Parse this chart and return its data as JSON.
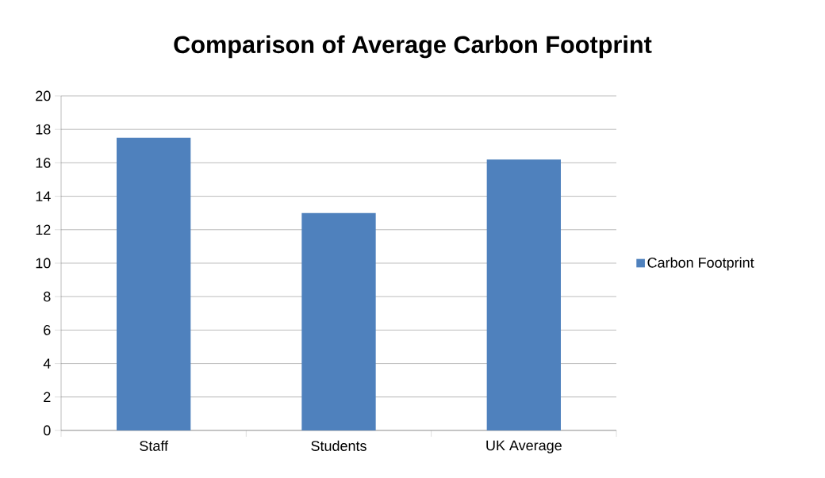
{
  "chart_data": {
    "type": "bar",
    "title": "Comparison of Average Carbon Footprint",
    "categories": [
      "Staff",
      "Students",
      "UK Average"
    ],
    "series": [
      {
        "name": "Carbon Footprint",
        "color": "#4f81bd",
        "values": [
          17.5,
          13.0,
          16.2
        ]
      }
    ],
    "ylim": [
      0,
      20
    ],
    "yticks": [
      0,
      2,
      4,
      6,
      8,
      10,
      12,
      14,
      16,
      18,
      20
    ],
    "grid": "y",
    "legend": "right"
  }
}
